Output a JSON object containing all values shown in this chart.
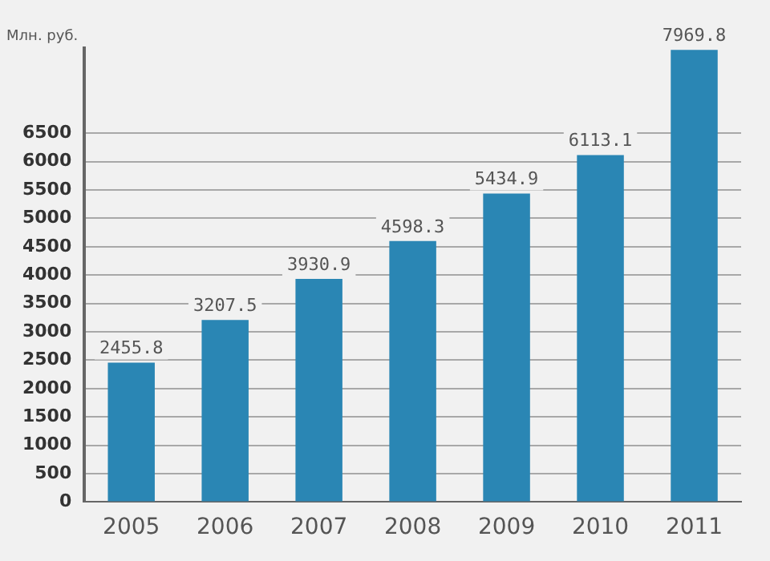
{
  "chart_data": {
    "type": "bar",
    "ylabel": "Млн. руб.",
    "categories": [
      "2005",
      "2006",
      "2007",
      "2008",
      "2009",
      "2010",
      "2011"
    ],
    "values": [
      2455.8,
      3207.5,
      3930.9,
      4598.3,
      5434.9,
      6113.1,
      7969.8
    ],
    "color": "#2a86b4",
    "ylim": [
      0,
      8000
    ],
    "yticks": [
      0,
      500,
      1000,
      1500,
      2000,
      2500,
      3000,
      3500,
      4000,
      4500,
      5000,
      5500,
      6000,
      6500
    ],
    "grid": "y",
    "data_labels": true,
    "legend": false
  }
}
